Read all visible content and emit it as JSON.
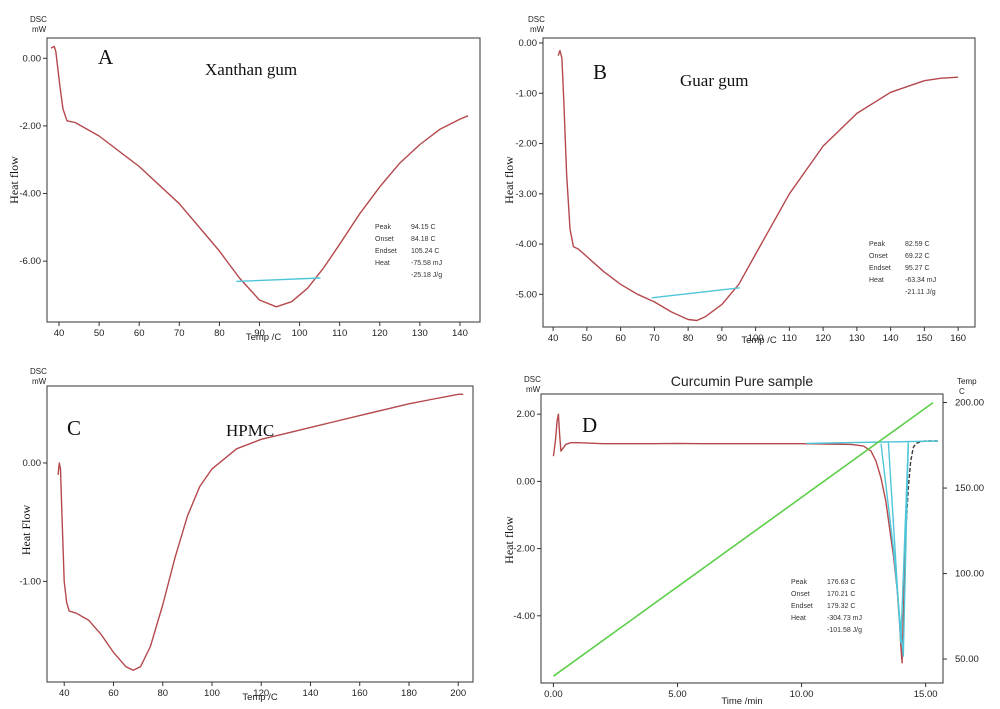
{
  "chart_data": [
    {
      "id": "A",
      "type": "line",
      "letter": "A",
      "sample_name": "Xanthan gum",
      "corner_top": "DSC",
      "corner_unit": "mW",
      "xlabel": "Temp /C",
      "ylabel": "Heat flow",
      "xlim": [
        37,
        145
      ],
      "ylim": [
        -7.8,
        0.6
      ],
      "xticks": [
        40,
        50,
        60,
        70,
        80,
        90,
        100,
        110,
        120,
        130,
        140
      ],
      "yticks": [
        0.0,
        -2.0,
        -4.0,
        -6.0
      ],
      "ytick_labels": [
        "0.00",
        "-2.00",
        "-4.00",
        "-6.00"
      ],
      "series": [
        {
          "color": "#b5484c",
          "x": [
            38,
            38.8,
            39.2,
            39.6,
            40.2,
            41,
            42,
            44,
            50,
            60,
            70,
            80,
            85,
            90,
            94.2,
            98,
            102,
            106,
            110,
            115,
            120,
            125,
            130,
            135,
            140,
            142
          ],
          "y": [
            0.3,
            0.35,
            0.2,
            -0.2,
            -0.8,
            -1.5,
            -1.85,
            -1.9,
            -2.3,
            -3.2,
            -4.3,
            -5.7,
            -6.5,
            -7.15,
            -7.35,
            -7.2,
            -6.8,
            -6.2,
            -5.5,
            -4.6,
            -3.8,
            -3.1,
            -2.55,
            -2.1,
            -1.8,
            -1.7
          ]
        },
        {
          "color": "#4fc6d8",
          "x": [
            84.2,
            105.2
          ],
          "y": [
            -6.6,
            -6.5
          ]
        }
      ],
      "results": [
        {
          "key": "Peak",
          "value": "94.15 C"
        },
        {
          "key": "Onset",
          "value": "84.18 C"
        },
        {
          "key": "Endset",
          "value": "105.24 C"
        },
        {
          "key": "Heat",
          "value": "-75.58 mJ"
        },
        {
          "key": "",
          "value": "-25.18 J/g"
        }
      ]
    },
    {
      "id": "B",
      "type": "line",
      "letter": "B",
      "sample_name": "Guar gum",
      "corner_top": "DSC",
      "corner_unit": "mW",
      "xlabel": "Temp /C",
      "ylabel": "Heat flow",
      "xlim": [
        37,
        165
      ],
      "ylim": [
        -5.65,
        0.1
      ],
      "xticks": [
        40,
        50,
        60,
        70,
        80,
        90,
        100,
        110,
        120,
        130,
        140,
        150,
        160
      ],
      "yticks": [
        0.0,
        -1.0,
        -2.0,
        -3.0,
        -4.0,
        -5.0
      ],
      "ytick_labels": [
        "0.00",
        "-1.00",
        "-2.00",
        "-3.00",
        "-4.00",
        "-5.00"
      ],
      "series": [
        {
          "color": "#b5484c",
          "x": [
            41.5,
            42,
            42.6,
            43.2,
            44,
            45,
            46,
            47.5,
            50,
            55,
            60,
            65,
            70,
            75,
            80,
            82.6,
            85,
            90,
            95,
            100,
            110,
            120,
            130,
            140,
            150,
            155,
            160
          ],
          "y": [
            -0.25,
            -0.15,
            -0.3,
            -1.2,
            -2.6,
            -3.7,
            -4.05,
            -4.1,
            -4.25,
            -4.55,
            -4.8,
            -5.0,
            -5.15,
            -5.35,
            -5.5,
            -5.52,
            -5.45,
            -5.2,
            -4.8,
            -4.2,
            -3.0,
            -2.05,
            -1.4,
            -0.98,
            -0.75,
            -0.7,
            -0.68
          ]
        },
        {
          "color": "#4fc6d8",
          "x": [
            69.2,
            95.3
          ],
          "y": [
            -5.07,
            -4.87
          ]
        }
      ],
      "results": [
        {
          "key": "Peak",
          "value": "82.59 C"
        },
        {
          "key": "Onset",
          "value": "69.22 C"
        },
        {
          "key": "Endset",
          "value": "95.27 C"
        },
        {
          "key": "Heat",
          "value": "-63.34 mJ"
        },
        {
          "key": "",
          "value": "-21.11 J/g"
        }
      ]
    },
    {
      "id": "C",
      "type": "line",
      "letter": "C",
      "sample_name": "HPMC",
      "corner_top": "DSC",
      "corner_unit": "mW",
      "xlabel": "Temp /C",
      "ylabel": "Heat Flow",
      "xlim": [
        33,
        206
      ],
      "ylim": [
        -1.85,
        0.65
      ],
      "xticks": [
        40,
        60,
        80,
        100,
        120,
        140,
        160,
        180,
        200
      ],
      "yticks": [
        0.0,
        -1.0
      ],
      "ytick_labels": [
        "0.00",
        "-1.00"
      ],
      "series": [
        {
          "color": "#b5484c",
          "x": [
            37.5,
            38,
            38.5,
            39,
            40,
            41,
            42,
            45,
            50,
            55,
            60,
            65,
            68,
            71,
            75,
            80,
            85,
            90,
            95,
            100,
            110,
            120,
            130,
            140,
            150,
            160,
            170,
            180,
            190,
            195,
            200,
            202
          ],
          "y": [
            -0.1,
            0.0,
            -0.05,
            -0.4,
            -1.0,
            -1.18,
            -1.25,
            -1.27,
            -1.33,
            -1.45,
            -1.6,
            -1.72,
            -1.75,
            -1.72,
            -1.55,
            -1.2,
            -0.8,
            -0.45,
            -0.2,
            -0.05,
            0.12,
            0.2,
            0.25,
            0.3,
            0.35,
            0.4,
            0.45,
            0.5,
            0.54,
            0.56,
            0.58,
            0.58
          ]
        }
      ]
    },
    {
      "id": "D",
      "type": "line",
      "letter": "D",
      "title": "Curcumin Pure sample",
      "corner_top": "DSC",
      "corner_unit": "mW",
      "corner_right_top": "Temp",
      "corner_right_unit": "C",
      "xlabel": "Time /min",
      "ylabel": "Heat flow",
      "xlim": [
        -0.5,
        15.7
      ],
      "ylim": [
        -6.0,
        2.6
      ],
      "xticks": [
        0.0,
        5.0,
        10.0,
        15.0
      ],
      "xtick_labels": [
        "0.00",
        "5.00",
        "10.00",
        "15.00"
      ],
      "yticks": [
        2.0,
        0.0,
        -2.0,
        -4.0
      ],
      "ytick_labels": [
        "2.00",
        "0.00",
        "-2.00",
        "-4.00"
      ],
      "y2lim": [
        36,
        205
      ],
      "y2ticks": [
        200,
        150,
        100,
        50
      ],
      "y2tick_labels": [
        "200.00",
        "150.00",
        "100.00",
        "50.00"
      ],
      "series": [
        {
          "color": "#b5484c",
          "x": [
            0,
            0.08,
            0.15,
            0.2,
            0.25,
            0.3,
            0.4,
            0.5,
            0.7,
            1,
            2,
            3,
            4,
            5,
            6,
            7,
            8,
            9,
            10,
            11,
            12,
            12.5,
            12.8,
            13.0,
            13.2,
            13.4,
            13.55,
            13.7,
            13.85,
            13.95,
            14.0,
            14.05,
            14.1,
            14.2
          ],
          "y": [
            0.75,
            1.2,
            1.8,
            2.0,
            1.4,
            0.9,
            1.0,
            1.1,
            1.15,
            1.15,
            1.12,
            1.12,
            1.12,
            1.13,
            1.12,
            1.12,
            1.12,
            1.12,
            1.12,
            1.11,
            1.1,
            1.05,
            0.9,
            0.6,
            0.1,
            -0.6,
            -1.4,
            -2.2,
            -3.2,
            -4.2,
            -4.9,
            -5.4,
            -4.0,
            -1.5
          ]
        },
        {
          "color": "#3b3b3b",
          "dash": true,
          "x": [
            14.2,
            14.3,
            14.4,
            14.5,
            14.6,
            14.8,
            15.0,
            15.3,
            15.5
          ],
          "y": [
            -1.5,
            -0.2,
            0.6,
            1.0,
            1.12,
            1.18,
            1.2,
            1.2,
            1.2
          ]
        },
        {
          "color": "#4fc6d8",
          "x": [
            10.2,
            15.5
          ],
          "y": [
            1.13,
            1.2
          ]
        },
        {
          "color": "#4fc6d8",
          "x": [
            13.2,
            13.7,
            14.1,
            14.3
          ],
          "y": [
            1.12,
            -2.0,
            -5.2,
            1.16
          ]
        },
        {
          "color": "#4fc6d8",
          "x": [
            13.5,
            14.0,
            14.3
          ],
          "y": [
            1.15,
            -4.8,
            1.15
          ]
        },
        {
          "color": "#5dcf4a",
          "axis": "y2",
          "x": [
            0.0,
            15.3
          ],
          "y": [
            40,
            200
          ]
        }
      ],
      "results": [
        {
          "key": "Peak",
          "value": "176.63 C"
        },
        {
          "key": "Onset",
          "value": "170.21 C"
        },
        {
          "key": "Endset",
          "value": "179.32 C"
        },
        {
          "key": "Heat",
          "value": "-304.73 mJ"
        },
        {
          "key": "",
          "value": "-101.58 J/g"
        }
      ]
    }
  ]
}
